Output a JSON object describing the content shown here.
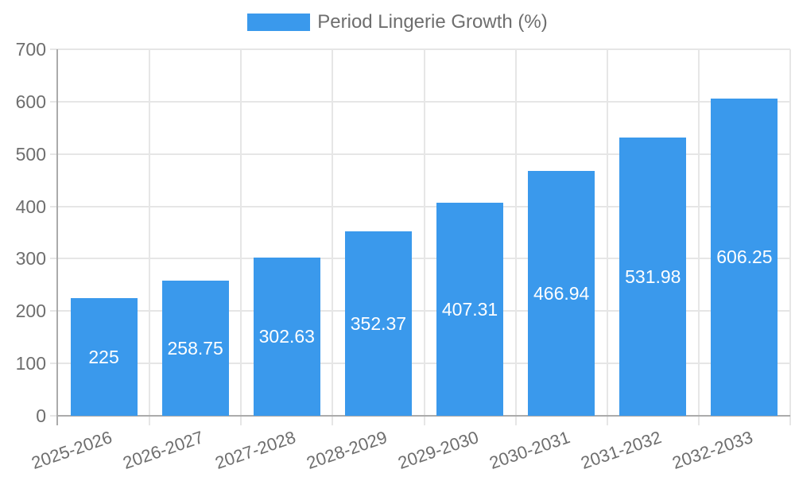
{
  "chart_data": {
    "type": "bar",
    "title": "Period Lingerie Growth (%)",
    "legend": {
      "label": "Period Lingerie Growth (%)",
      "position": "top"
    },
    "categories": [
      "2025-2026",
      "2026-2027",
      "2027-2028",
      "2028-2029",
      "2029-2030",
      "2030-2031",
      "2031-2032",
      "2032-2033"
    ],
    "series": [
      {
        "name": "Period Lingerie Growth (%)",
        "values": [
          225,
          258.75,
          302.63,
          352.37,
          407.31,
          466.94,
          531.98,
          606.25
        ]
      }
    ],
    "bar_value_labels": [
      "225",
      "258.75",
      "302.63",
      "352.37",
      "407.31",
      "466.94",
      "531.98",
      "606.25"
    ],
    "xlabel": "",
    "ylabel": "",
    "ylim": [
      0,
      700
    ],
    "y_ticks": [
      0,
      100,
      200,
      300,
      400,
      500,
      600,
      700
    ],
    "grid": true,
    "colors": {
      "bar": "#3a99ec",
      "bar_label_text": "#ffffff",
      "axis_text": "#6e6e6e",
      "legend_text": "#6e6e6e",
      "gridline": "#e6e6e6",
      "axis_line": "#ababab"
    }
  }
}
